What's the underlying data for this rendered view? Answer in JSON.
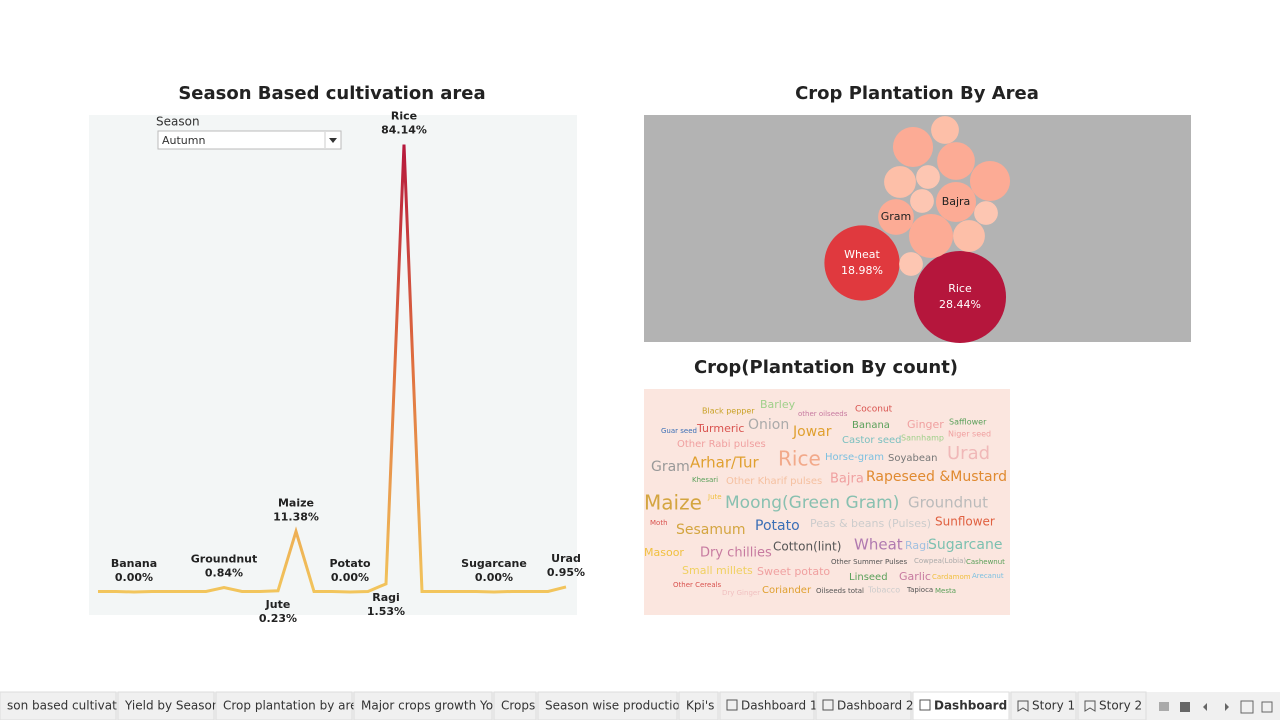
{
  "line_chart": {
    "type": "line",
    "title": "Season Based cultivation area",
    "filter_label": "Season",
    "filter_value": "Autumn",
    "categories": [
      null,
      null,
      "Banana",
      null,
      null,
      null,
      null,
      "Groundnut",
      null,
      null,
      "Jute",
      "Maize",
      null,
      null,
      "Potato",
      null,
      "Ragi",
      "Rice",
      null,
      null,
      null,
      null,
      "Sugarcane",
      null,
      null,
      null,
      "Urad"
    ],
    "values": [
      0.1,
      0.1,
      0,
      0.1,
      0.1,
      0.1,
      0.1,
      0.84,
      0.1,
      0.1,
      0.23,
      11.38,
      0.1,
      0.1,
      0,
      0.1,
      1.53,
      84.14,
      0.1,
      0.1,
      0.1,
      0.1,
      0,
      0.1,
      0.1,
      0.1,
      0.95
    ],
    "value_labels": [
      null,
      null,
      "0.00%",
      null,
      null,
      null,
      null,
      "0.84%",
      null,
      null,
      "0.23%",
      "11.38%",
      null,
      null,
      "0.00%",
      null,
      "1.53%",
      "84.14%",
      null,
      null,
      null,
      null,
      "0.00%",
      null,
      null,
      null,
      "0.95%"
    ],
    "ylim": [
      0,
      85
    ],
    "colors": [
      "#f2c55c",
      "#e0703f",
      "#b5163c"
    ]
  },
  "bubble_chart": {
    "type": "bubble",
    "title": "Crop Plantation By Area",
    "labels": [
      "Rice",
      "Wheat",
      "Gram",
      "Bajra",
      null,
      null,
      null,
      null,
      null,
      null,
      null,
      null,
      null,
      null,
      null
    ],
    "values": [
      28.44,
      18.98,
      4.3,
      5.4,
      6.5,
      5.4,
      4.8,
      5.4,
      3.4,
      2.6,
      1.9,
      1.9,
      3.4,
      1.9,
      1.9
    ],
    "value_labels": [
      "28.44%",
      "18.98%",
      null,
      null,
      null,
      null,
      null,
      null,
      null,
      null,
      null,
      null,
      null,
      null,
      null
    ],
    "colors": [
      "#b5163c",
      "#e0393e",
      "#fcab95",
      "#fcab95",
      "#fcab95",
      "#fcab95",
      "#fcab95",
      "#fcab95",
      "#fdbfa8",
      "#fdbfa8",
      "#fdc6b2",
      "#fdc6b2",
      "#fdbfa8",
      "#fdc6b2",
      "#fdc6b2"
    ]
  },
  "word_cloud": {
    "title": "Crop(Plantation By count)",
    "words": [
      "Black pepper",
      "Barley",
      "other oilseeds",
      "Coconut",
      "Guar seed",
      "Turmeric",
      "Onion",
      "Jowar",
      "Banana",
      "Ginger",
      "Safflower",
      "Niger seed",
      "Castor seed",
      "Sannhamp",
      "Other Rabi pulses",
      "Gram",
      "Arhar/Tur",
      "Rice",
      "Horse-gram",
      "Soyabean",
      "Urad",
      "Khesari",
      "Other Kharif pulses",
      "Bajra",
      "Rapeseed &Mustard",
      "Maize",
      "Jute",
      "Moong(Green Gram)",
      "Groundnut",
      "Moth",
      "Sesamum",
      "Potato",
      "Peas & beans (Pulses)",
      "Sunflower",
      "Masoor",
      "Dry chillies",
      "Cotton(lint)",
      "Wheat",
      "Ragi",
      "Sugarcane",
      "Small millets",
      "Sweet potato",
      "Other Summer Pulses",
      "Cowpea(Lobia)",
      "Cashewnut",
      "Linseed",
      "Garlic",
      "Cardamom",
      "Arecanut",
      "Other Cereals",
      "Dry Ginger",
      "Coriander",
      "Oilseeds total",
      "Tobacco",
      "Tapioca",
      "Mesta"
    ],
    "colors": [
      "#c9a227",
      "#9fd08a",
      "#c77aa0",
      "#d9534f",
      "#3b6fb6",
      "#d9534f",
      "#aaaaaa",
      "#e0a030",
      "#5aa05a",
      "#f0a0a0",
      "#5aa05a",
      "#f0a0a0",
      "#7cc0c0",
      "#9fd08a",
      "#f0a0a0",
      "#999999",
      "#e0a030",
      "#f2a98a",
      "#7cc0e0",
      "#777777",
      "#f0b8b8",
      "#5aa05a",
      "#f5c0a0",
      "#f0a0a0",
      "#e08a30",
      "#d4a540",
      "#f0c040",
      "#88c0b0",
      "#bbbbbb",
      "#d9534f",
      "#d4a540",
      "#3b6fb6",
      "#cccccc",
      "#e06040",
      "#f0c040",
      "#c77aa0",
      "#555555",
      "#b07ab0",
      "#a0c0e0",
      "#7cc0b0",
      "#f0d060",
      "#f0a0a0",
      "#555555",
      "#aaaaaa",
      "#5aa05a",
      "#5aa05a",
      "#c77aa0",
      "#f0c040",
      "#7cc0e0",
      "#d9534f",
      "#f0c0c0",
      "#e0a030",
      "#555555",
      "#cccccc",
      "#555555",
      "#5aa05a"
    ]
  },
  "tabs": [
    "son based cultivation",
    "Yield by Season",
    "Crop plantation by area",
    "Major crops growth Yoy",
    "Crops",
    "Season wise production",
    "Kpi's",
    "Dashboard 1",
    "Dashboard 2",
    "Dashboard 3",
    "Story 1",
    "Story 2"
  ],
  "active_tab": 9
}
